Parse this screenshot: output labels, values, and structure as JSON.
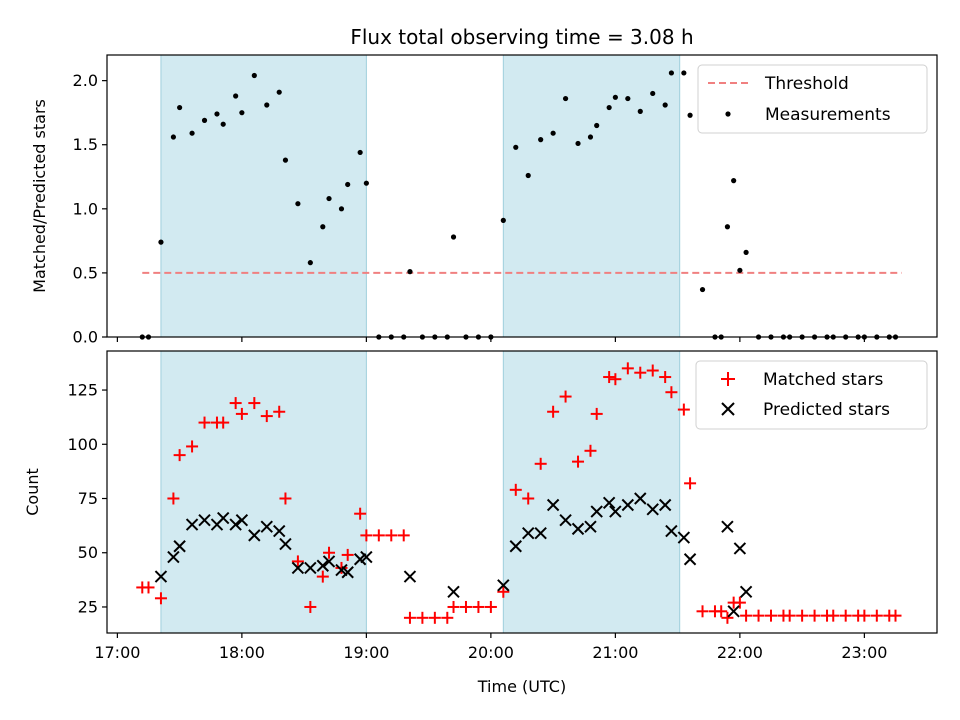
{
  "chart_data": {
    "type": "scatter",
    "title": "Flux total observing time = 3.08 h",
    "xlabel": "Time (UTC)",
    "x_unit": "hours UTC",
    "xlim": [
      "16:55",
      "23:35"
    ],
    "xticks": [
      "17:00",
      "18:00",
      "19:00",
      "20:00",
      "21:00",
      "22:00",
      "23:00"
    ],
    "shaded_intervals": [
      [
        "17:21",
        "19:00"
      ],
      [
        "20:06",
        "21:31"
      ]
    ],
    "shade_color": "#add8e6",
    "grid": false,
    "panels": [
      {
        "id": "ratio",
        "ylabel": "Matched/Predicted stars",
        "ylim": [
          0,
          2.2
        ],
        "yticks": [
          "0.0",
          "0.5",
          "1.0",
          "1.5",
          "2.0"
        ],
        "legend_position": "top-right",
        "series": [
          {
            "name": "Threshold",
            "style": "dashed-line",
            "color": "#f08080",
            "x": [
              "17:12",
              "23:18"
            ],
            "y": [
              0.5,
              0.5
            ]
          },
          {
            "name": "Measurements",
            "style": "dot",
            "color": "#000000",
            "x": [
              "17:12",
              "17:15",
              "17:21",
              "17:27",
              "17:30",
              "17:36",
              "17:42",
              "17:48",
              "17:51",
              "17:57",
              "18:00",
              "18:06",
              "18:12",
              "18:18",
              "18:21",
              "18:27",
              "18:33",
              "18:39",
              "18:42",
              "18:48",
              "18:51",
              "18:57",
              "19:00",
              "19:06",
              "19:12",
              "19:18",
              "19:21",
              "19:27",
              "19:33",
              "19:39",
              "19:42",
              "19:48",
              "19:54",
              "20:00",
              "20:06",
              "20:12",
              "20:18",
              "20:24",
              "20:30",
              "20:36",
              "20:42",
              "20:48",
              "20:51",
              "20:57",
              "21:00",
              "21:06",
              "21:12",
              "21:18",
              "21:24",
              "21:27",
              "21:33",
              "21:36",
              "21:42",
              "21:48",
              "21:51",
              "21:54",
              "21:57",
              "22:00",
              "22:03",
              "22:09",
              "22:15",
              "22:21",
              "22:24",
              "22:30",
              "22:36",
              "22:42",
              "22:45",
              "22:51",
              "22:57",
              "23:00",
              "23:06",
              "23:12",
              "23:15"
            ],
            "y": [
              0,
              0,
              0.74,
              1.56,
              1.79,
              1.59,
              1.69,
              1.74,
              1.66,
              1.88,
              1.75,
              2.04,
              1.81,
              1.91,
              1.38,
              1.04,
              0.58,
              0.86,
              1.08,
              1.0,
              1.19,
              1.44,
              1.2,
              0,
              0,
              0,
              0.51,
              0,
              0,
              0,
              0.78,
              0,
              0,
              0,
              0.91,
              1.48,
              1.26,
              1.54,
              1.59,
              1.86,
              1.51,
              1.56,
              1.65,
              1.79,
              1.87,
              1.86,
              1.76,
              1.9,
              1.81,
              2.06,
              2.06,
              1.73,
              0.37,
              0,
              0,
              0.86,
              1.22,
              0.52,
              0.66,
              0,
              0,
              0,
              0,
              0,
              0,
              0,
              0,
              0,
              0,
              0,
              0,
              0,
              0
            ]
          }
        ]
      },
      {
        "id": "count",
        "ylabel": "Count",
        "ylim": [
          13,
          143
        ],
        "yticks": [
          "25",
          "50",
          "75",
          "100",
          "125"
        ],
        "legend_position": "top-right",
        "series": [
          {
            "name": "Matched stars",
            "style": "plus",
            "color": "#ff0000",
            "x": [
              "17:12",
              "17:15",
              "17:21",
              "17:27",
              "17:30",
              "17:36",
              "17:42",
              "17:48",
              "17:51",
              "17:57",
              "18:00",
              "18:06",
              "18:12",
              "18:18",
              "18:21",
              "18:27",
              "18:33",
              "18:39",
              "18:42",
              "18:48",
              "18:51",
              "18:57",
              "19:00",
              "19:06",
              "19:12",
              "19:18",
              "19:21",
              "19:27",
              "19:33",
              "19:39",
              "19:42",
              "19:48",
              "19:54",
              "20:00",
              "20:06",
              "20:12",
              "20:18",
              "20:24",
              "20:30",
              "20:36",
              "20:42",
              "20:48",
              "20:51",
              "20:57",
              "21:00",
              "21:06",
              "21:12",
              "21:18",
              "21:24",
              "21:27",
              "21:33",
              "21:36",
              "21:42",
              "21:48",
              "21:51",
              "21:54",
              "21:57",
              "22:00",
              "22:03",
              "22:09",
              "22:15",
              "22:21",
              "22:24",
              "22:30",
              "22:36",
              "22:42",
              "22:45",
              "22:51",
              "22:57",
              "23:00",
              "23:06",
              "23:12",
              "23:15"
            ],
            "y": [
              34,
              34,
              29,
              75,
              95,
              99,
              110,
              110,
              110,
              119,
              114,
              119,
              113,
              115,
              75,
              46,
              25,
              39,
              50,
              43,
              49,
              68,
              58,
              58,
              58,
              58,
              20,
              20,
              20,
              20,
              25,
              25,
              25,
              25,
              32,
              79,
              75,
              91,
              115,
              122,
              92,
              97,
              114,
              131,
              130,
              135,
              133,
              134,
              131,
              124,
              116,
              82,
              23,
              23,
              23,
              20,
              27,
              27,
              21,
              21,
              21,
              21,
              21,
              21,
              21,
              21,
              21,
              21,
              21,
              21,
              21,
              21,
              21
            ]
          },
          {
            "name": "Predicted stars",
            "style": "x",
            "color": "#000000",
            "x": [
              "17:21",
              "17:27",
              "17:30",
              "17:36",
              "17:42",
              "17:48",
              "17:51",
              "17:57",
              "18:00",
              "18:06",
              "18:12",
              "18:18",
              "18:21",
              "18:27",
              "18:33",
              "18:39",
              "18:42",
              "18:48",
              "18:51",
              "18:57",
              "19:00",
              "19:21",
              "19:42",
              "20:06",
              "20:12",
              "20:18",
              "20:24",
              "20:30",
              "20:36",
              "20:42",
              "20:48",
              "20:51",
              "20:57",
              "21:00",
              "21:06",
              "21:12",
              "21:18",
              "21:24",
              "21:27",
              "21:33",
              "21:36",
              "21:54",
              "21:57",
              "22:00",
              "22:03"
            ],
            "y": [
              39,
              48,
              53,
              63,
              65,
              63,
              66,
              63,
              65,
              58,
              62,
              60,
              54,
              43,
              43,
              44,
              46,
              42,
              41,
              47,
              48,
              39,
              32,
              35,
              53,
              59,
              59,
              72,
              65,
              61,
              62,
              69,
              73,
              69,
              72,
              75,
              70,
              72,
              60,
              57,
              47,
              62,
              23,
              52,
              32
            ]
          }
        ]
      }
    ]
  }
}
